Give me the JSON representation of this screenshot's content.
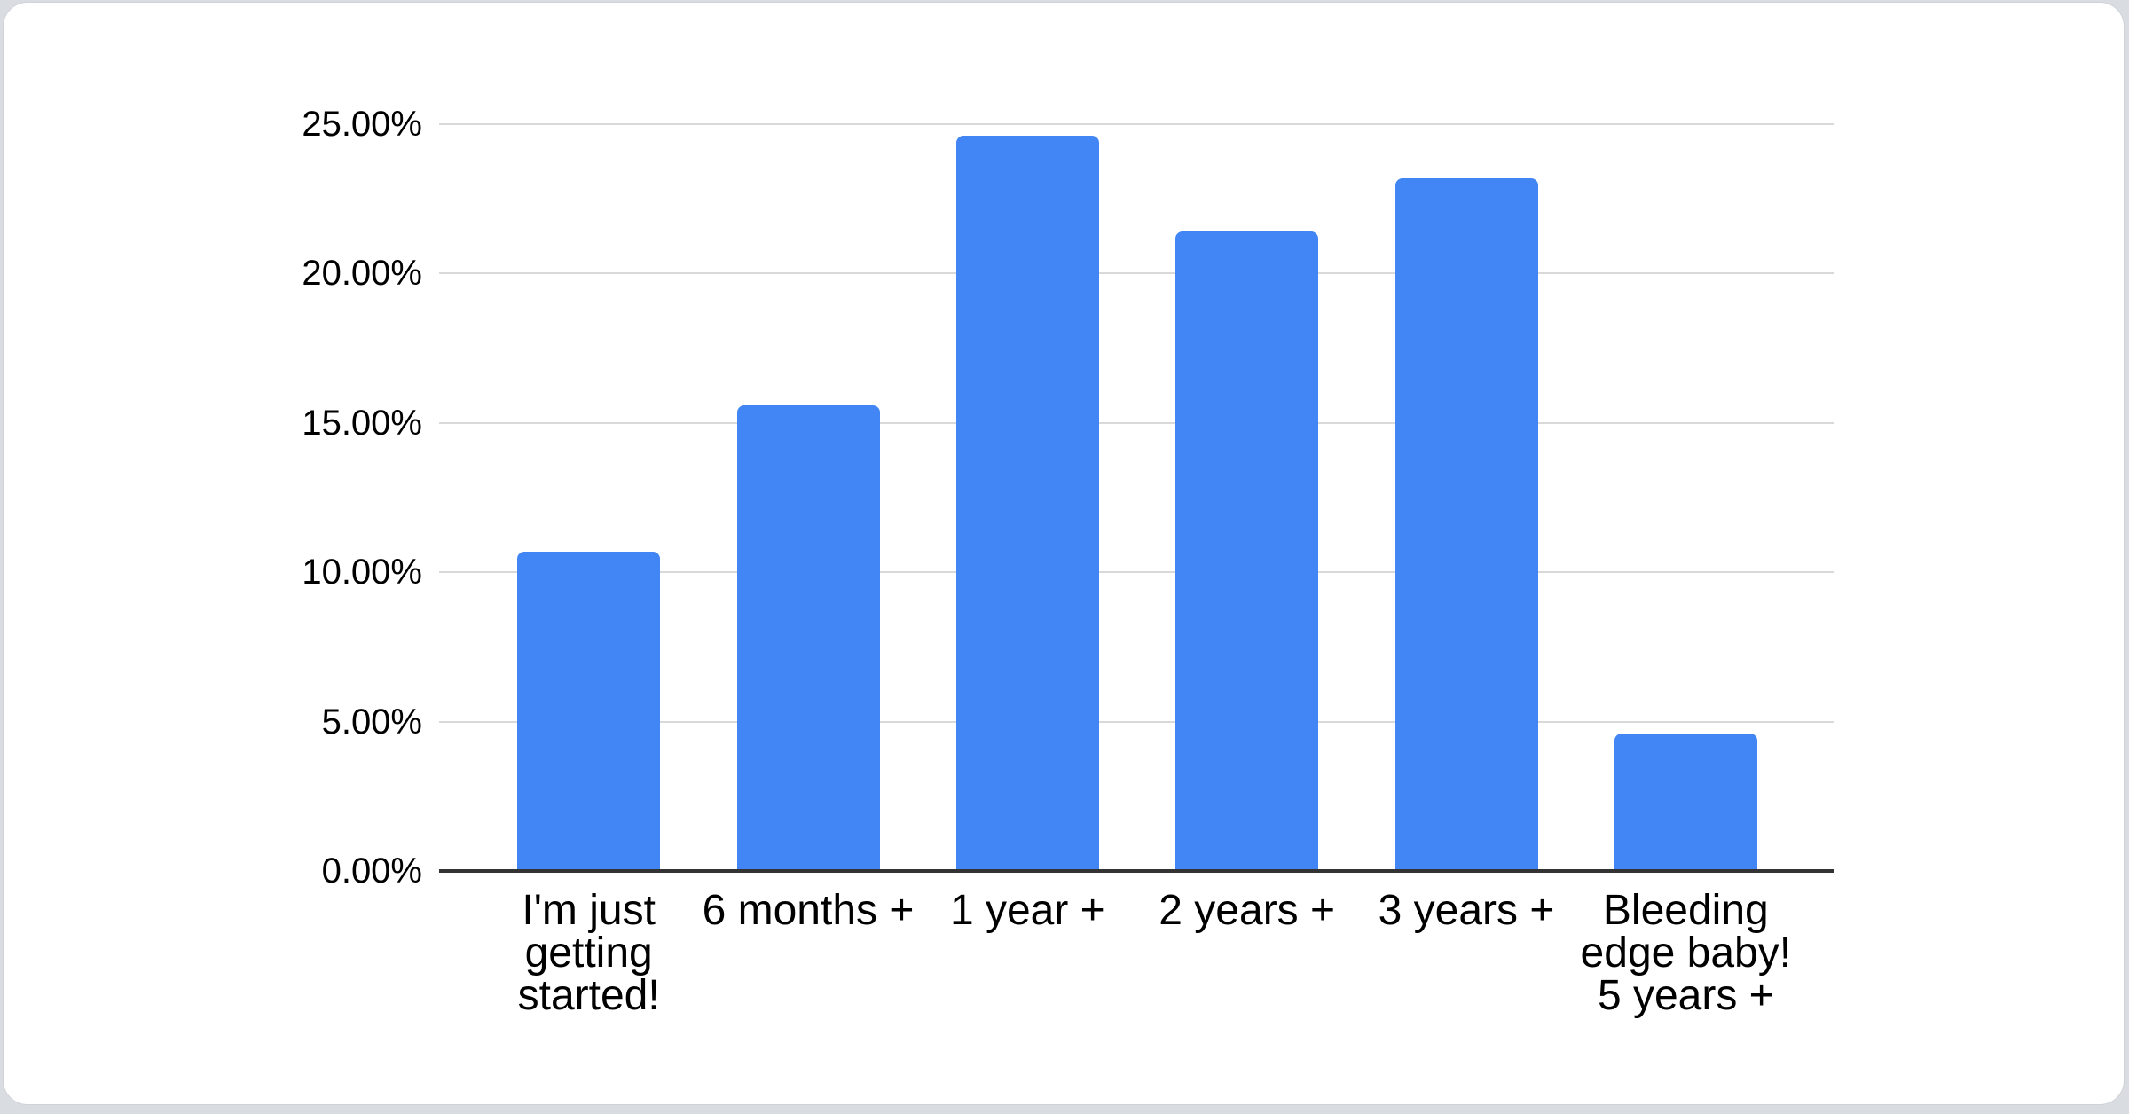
{
  "chart_data": {
    "type": "bar",
    "title": "",
    "xlabel": "",
    "ylabel": "",
    "categories": [
      "I'm just getting started!",
      "6 months +",
      "1 year +",
      "2 years +",
      "3 years +",
      "Bleeding edge baby! 5 years +"
    ],
    "values": [
      10.7,
      15.6,
      24.6,
      21.4,
      23.2,
      4.6
    ],
    "value_format": "percent",
    "ylim": [
      0,
      25
    ],
    "y_tick_values": [
      0,
      5,
      10,
      15,
      20,
      25
    ],
    "y_tick_labels": [
      "0.00%",
      "5.00%",
      "10.00%",
      "15.00%",
      "20.00%",
      "25.00%"
    ],
    "grid": true,
    "legend_position": "none",
    "bar_color": "#4285f4",
    "gridline_color": "#d9d9d9",
    "axis_line_color": "#333333",
    "label_color": "#000000",
    "card_background": "#ffffff",
    "page_background": "#d9dce0"
  }
}
